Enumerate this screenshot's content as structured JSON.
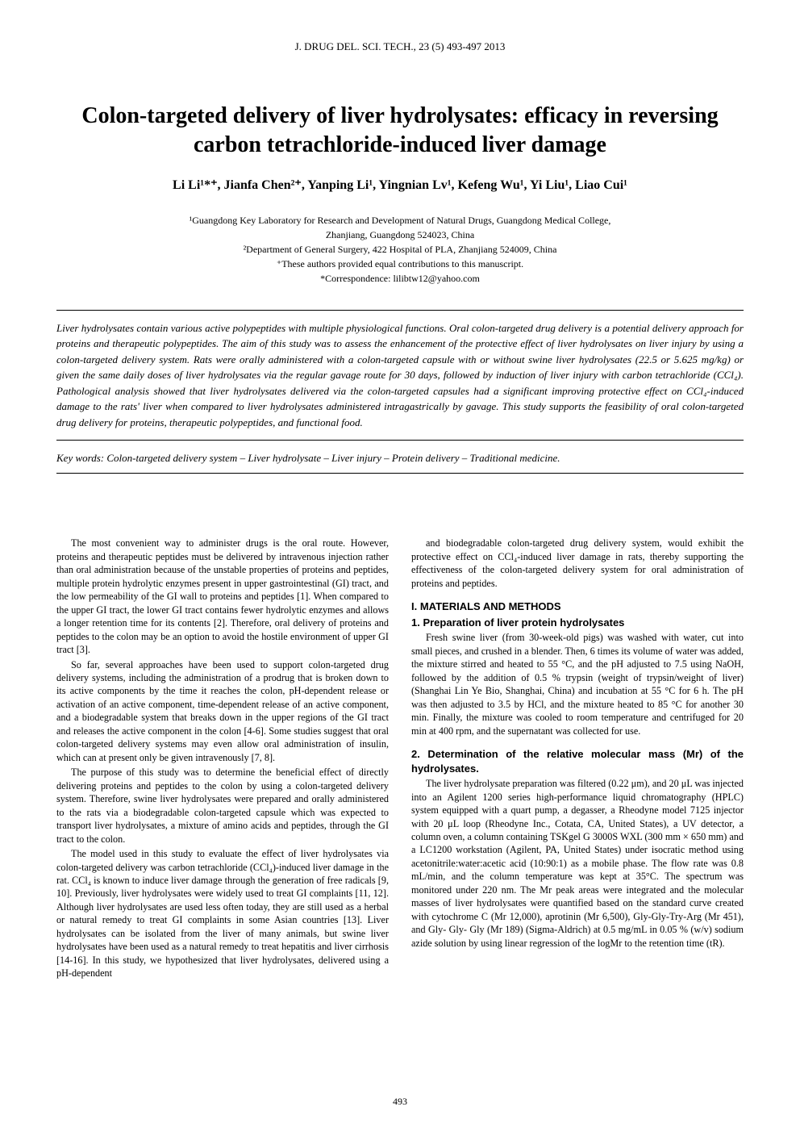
{
  "journal": {
    "citation": "J. DRUG DEL. SCI. TECH., 23 (5) 493-497 2013"
  },
  "title": "Colon-targeted delivery of liver hydrolysates: efficacy in reversing carbon tetrachloride-induced liver damage",
  "authors": "Li Li¹*⁺, Jianfa Chen²⁺, Yanping Li¹, Yingnian Lv¹, Kefeng Wu¹, Yi Liu¹, Liao Cui¹",
  "affiliations": {
    "line1": "¹Guangdong Key Laboratory for Research and Development of Natural Drugs, Guangdong Medical College,",
    "line2": "Zhanjiang, Guangdong 524023, China",
    "line3": "²Department of General Surgery, 422 Hospital of PLA, Zhanjiang 524009, China",
    "line4": "⁺These authors provided equal contributions to this manuscript.",
    "line5": "*Correspondence: lilibtw12@yahoo.com"
  },
  "abstract": "Liver hydrolysates contain various active polypeptides with multiple physiological functions. Oral colon-targeted drug delivery is a potential delivery approach for proteins and therapeutic polypeptides. The aim of this study was to assess the enhancement of the protective effect of liver hydrolysates on liver injury by using a colon-targeted delivery system. Rats were orally administered with a colon-targeted capsule with or without swine liver hydrolysates (22.5 or 5.625 mg/kg) or given the same daily doses of liver hydrolysates via the regular gavage route for 30 days, followed by induction of liver injury with carbon tetrachloride (CCl₄). Pathological analysis showed that liver hydrolysates delivered via the colon-targeted capsules had a significant improving protective effect on CCl₄-induced damage to the rats' liver when compared to liver hydrolysates administered intragastrically by gavage. This study supports the feasibility of oral colon-targeted drug delivery for proteins, therapeutic polypeptides, and functional food.",
  "keywords": "Key words: Colon-targeted delivery system – Liver hydrolysate – Liver injury – Protein delivery – Traditional medicine.",
  "leftColumn": {
    "p1": "The most convenient way to administer drugs is the oral route. However, proteins and therapeutic peptides must be delivered by intravenous injection rather than oral administration because of the unstable properties of proteins and peptides, multiple protein hydrolytic enzymes present in upper gastrointestinal (GI) tract, and the low permeability of the GI wall to proteins and peptides [1]. When compared to the upper GI tract, the lower GI tract contains fewer hydrolytic enzymes and allows a longer retention time for its contents [2]. Therefore, oral delivery of proteins and peptides to the colon may be an option to avoid the hostile environment of upper GI tract [3].",
    "p2": "So far, several approaches have been used to support colon-targeted drug delivery systems, including the administration of a prodrug that is broken down to its active components by the time it reaches the colon, pH-dependent release or activation of an active component, time-dependent release of an active component, and a biodegradable system that breaks down in the upper regions of the GI tract and releases the active component in the colon [4-6]. Some studies suggest that oral colon-targeted delivery systems may even allow oral administration of insulin, which can at present only be given intravenously [7, 8].",
    "p3": "The purpose of this study was to determine the beneficial effect of directly delivering proteins and peptides to the colon by using a colon-targeted delivery system. Therefore, swine liver hydrolysates were prepared and orally administered to the rats via a biodegradable colon-targeted capsule which was expected to transport liver hydrolysates, a mixture of amino acids and peptides, through the GI tract to the colon.",
    "p4": "The model used in this study to evaluate the effect of liver hydrolysates via colon-targeted delivery was carbon tetrachloride (CCl₄)-induced liver damage in the rat. CCl₄ is known to induce liver damage through the generation of free radicals [9, 10]. Previously, liver hydrolysates were widely used to treat GI complaints [11, 12]. Although liver hydrolysates are used less often today, they are still used as a herbal or natural remedy to treat GI complaints in some Asian countries [13]. Liver hydrolysates can be isolated from the liver of many animals, but swine liver hydrolysates have been used as a natural remedy to treat hepatitis and liver cirrhosis [14-16]. In this study, we hypothesized that liver hydrolysates, delivered using a pH-dependent"
  },
  "rightColumn": {
    "p1": "and biodegradable colon-targeted drug delivery system, would exhibit the protective effect on CCl₄-induced liver damage in rats, thereby supporting the effectiveness of the colon-targeted delivery system for oral administration of proteins and peptides.",
    "sectionHeading": "I. MATERIALS AND METHODS",
    "subsection1Heading": "1. Preparation of liver protein hydrolysates",
    "p2": "Fresh swine liver (from 30-week-old pigs) was washed with water, cut into small pieces, and crushed in a blender. Then, 6 times its volume of water was added, the mixture stirred and heated to 55 °C, and the pH adjusted to 7.5 using NaOH, followed by the addition of 0.5 % trypsin (weight of trypsin/weight of liver) (Shanghai Lin Ye Bio, Shanghai, China) and incubation at 55 °C for 6 h. The pH was then adjusted to 3.5 by HCl, and the mixture heated to 85 °C for another 30 min. Finally, the mixture was cooled to room temperature and centrifuged for 20 min at 400 rpm, and the supernatant was collected for use.",
    "subsection2Heading": "2. Determination of the relative molecular mass (Mr) of the hydrolysates.",
    "p3": "The liver hydrolysate preparation was filtered (0.22 μm), and 20 μL was injected into an Agilent 1200 series high-performance liquid chromatography (HPLC) system equipped with a quart pump, a degasser, a Rheodyne model 7125 injector with 20 μL loop (Rheodyne Inc., Cotata, CA, United States), a UV detector, a column oven, a column containing TSKgel G 3000S WXL (300 mm × 650 mm) and a LC1200 workstation (Agilent, PA, United States) under isocratic method using acetonitrile:water:acetic acid (10:90:1) as a mobile phase. The flow rate was 0.8 mL/min, and the column temperature was kept at 35°C. The spectrum was monitored under 220 nm. The Mr peak areas were integrated and the molecular masses of liver hydrolysates were quantified based on the standard curve created with cytochrome C (Mr 12,000), aprotinin (Mr 6,500), Gly-Gly-Try-Arg (Mr 451), and Gly- Gly- Gly (Mr 189) (Sigma-Aldrich) at 0.5 mg/mL in 0.05 % (w/v) sodium azide solution by using linear regression of the logMr to the retention time (tR)."
  },
  "pageNumber": "493",
  "styling": {
    "pageWidth": 992,
    "pageHeight": 1403,
    "backgroundColor": "#ffffff",
    "textColor": "#000000",
    "borderColor": "#000000",
    "fontFamily": "Times New Roman",
    "headingFontFamily": "Arial",
    "titleFontSize": 28,
    "authorFontSize": 16,
    "bodyFontSize": 12.2,
    "affiliationFontSize": 12,
    "headingFontSize": 13
  }
}
